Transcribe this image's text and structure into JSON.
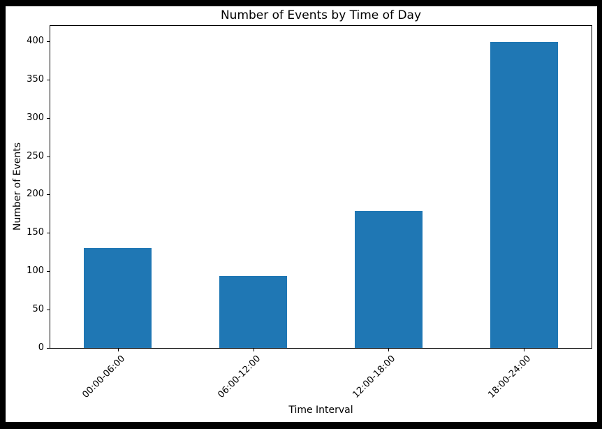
{
  "frame": {
    "border_color": "#000000",
    "figure_background": "#ffffff",
    "text_color": "#000000"
  },
  "chart_data": {
    "type": "bar",
    "title": "Number of Events by Time of Day",
    "xlabel": "Time Interval",
    "ylabel": "Number of Events",
    "categories": [
      "00:00-06:00",
      "06:00-12:00",
      "12:00-18:00",
      "18:00-24:00"
    ],
    "values": [
      130,
      94,
      179,
      399
    ],
    "yticks": [
      0,
      50,
      100,
      150,
      200,
      250,
      300,
      350,
      400
    ],
    "ylim": [
      0,
      420
    ],
    "bar_color": "#1f77b4",
    "bar_width_fraction": 0.5,
    "grid": false,
    "legend_position": "none",
    "x_tick_rotation_deg": 45
  }
}
